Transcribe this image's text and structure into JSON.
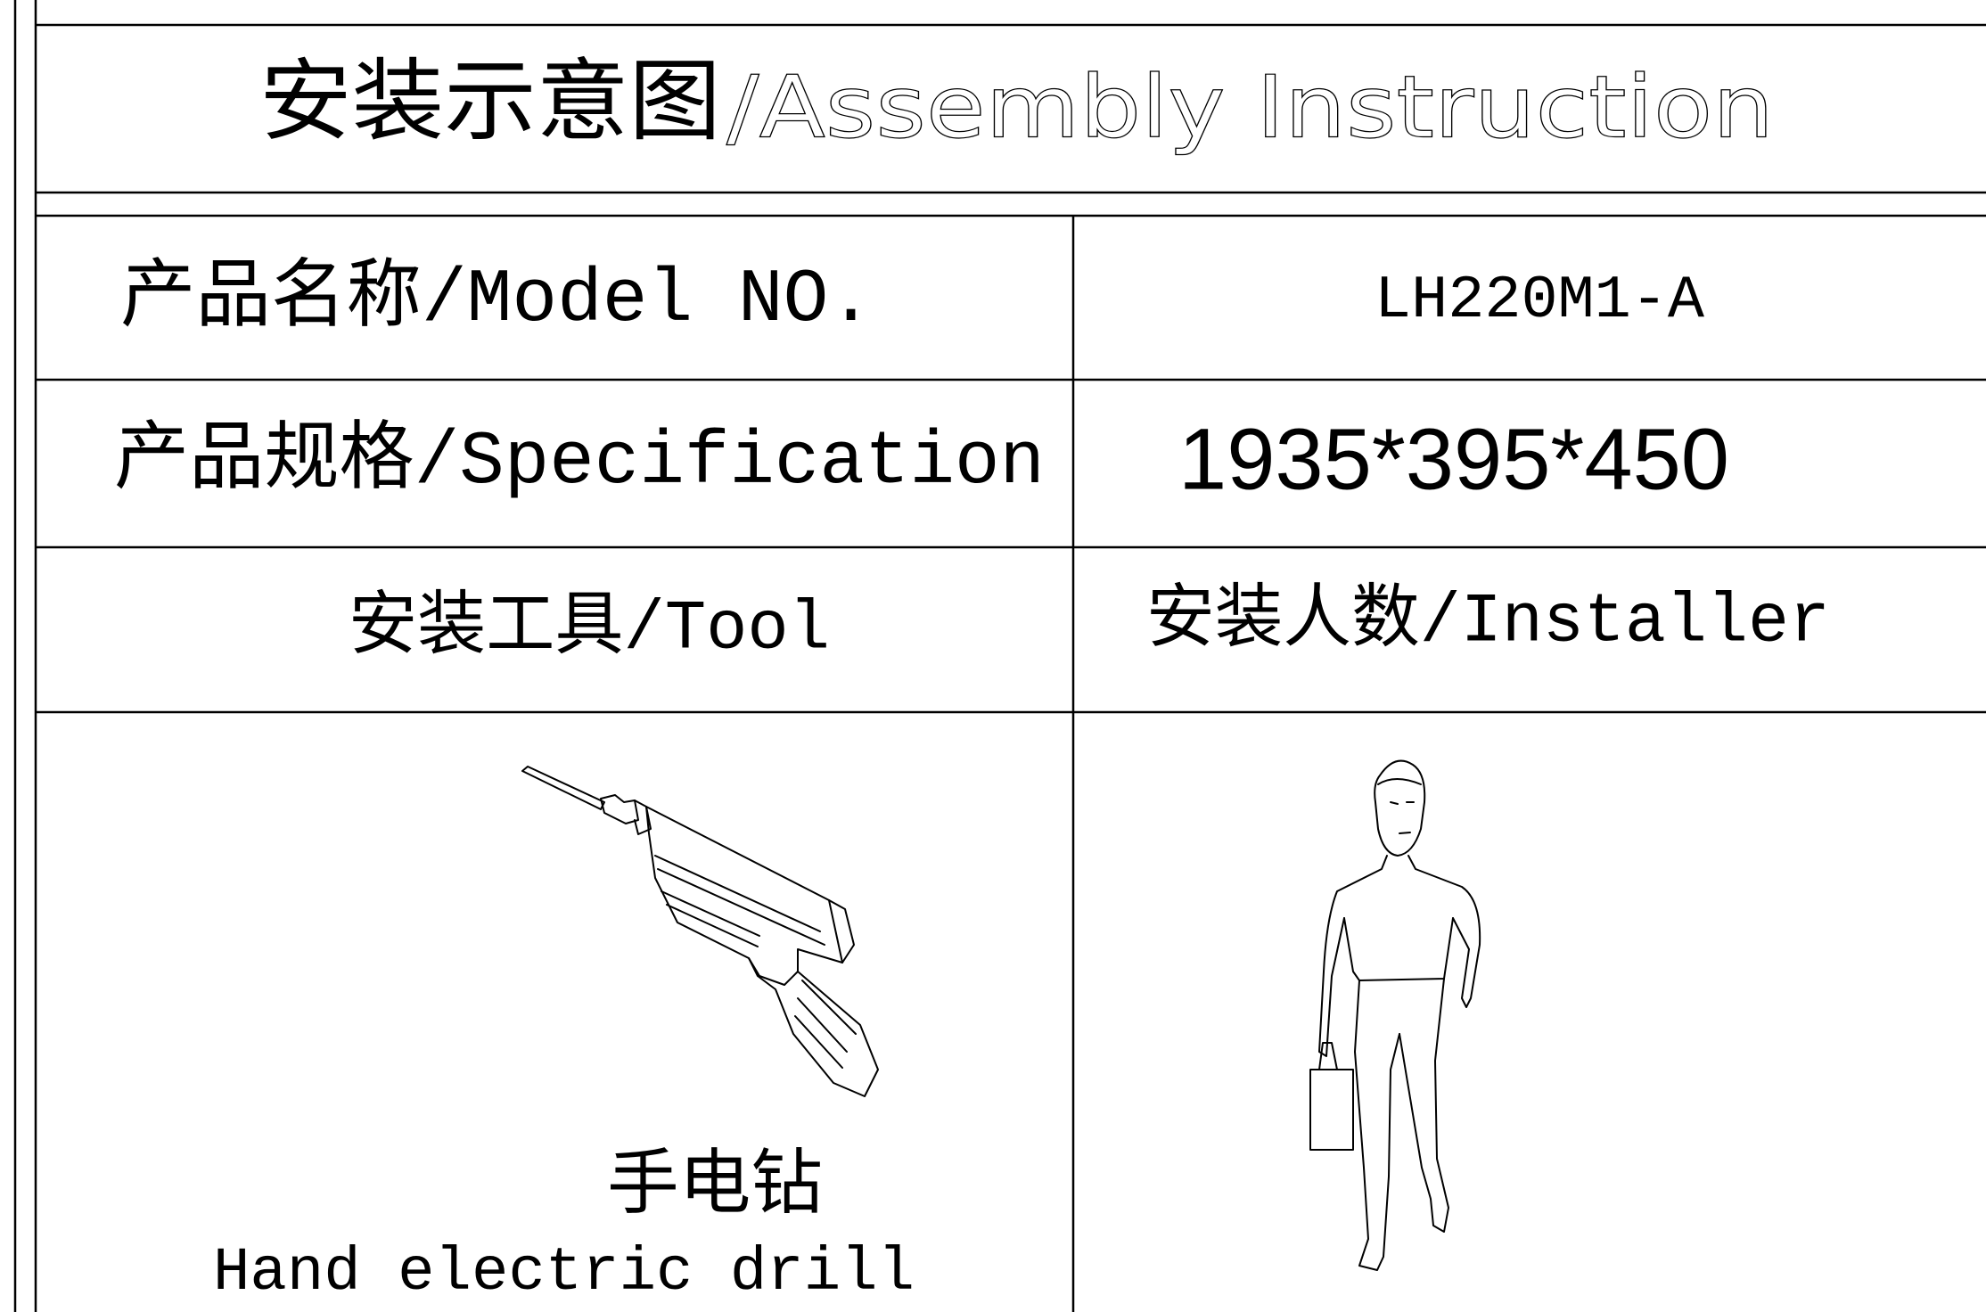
{
  "header": {
    "title": {
      "zh": "安装示意图",
      "en": "/Assembly Instruction"
    }
  },
  "table": {
    "rows": [
      [
        "产品名称/Model NO.",
        "LH220M1-A"
      ],
      [
        "产品规格/Specification",
        "1935*395*450"
      ],
      [
        "安装工具/Tool",
        "安装人数/Installer"
      ]
    ]
  },
  "tools": {
    "drill": {
      "zh": "手电钻",
      "en": "Hand electric drill"
    }
  }
}
